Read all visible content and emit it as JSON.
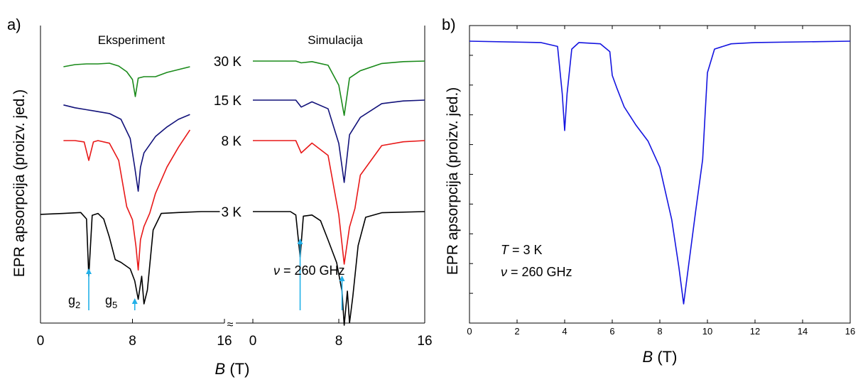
{
  "panel_a": {
    "label": "a)",
    "col_left_title": "Eksperiment",
    "col_right_title": "Simulacija",
    "ylabel": "EPR apsorpcija (proizv. jed.)",
    "xlabel_var": "B",
    "xlabel_unit": " (T)",
    "left_ticks": [
      "0",
      "8",
      "16"
    ],
    "right_ticks": [
      "0",
      "8",
      "16"
    ],
    "break_mark": "≈",
    "nu_symbol": "ν",
    "nu_text": " = 260 GHz",
    "g2": "g",
    "g2_sub": "2",
    "g5": "g",
    "g5_sub": "5"
  },
  "panel_b": {
    "label": "b)",
    "ylabel": "EPR apsorpcija (proizv. jed.)",
    "xlabel_var": "B",
    "xlabel_unit": " (T)",
    "ticks": [
      "0",
      "2",
      "4",
      "6",
      "8",
      "10",
      "12",
      "14",
      "16"
    ],
    "T_symbol": "T",
    "T_text": " = 3 K",
    "nu_symbol": "ν",
    "nu_text": " = 260 GHz"
  },
  "colors": {
    "30K": "#1a8a1a",
    "15K": "#12127a",
    "8K": "#e81818",
    "3K": "#000000",
    "panel_b_line": "#1414e0",
    "arrow": "#22b0e8"
  },
  "chart_data": [
    {
      "type": "line",
      "title": "Eksperiment",
      "xlabel": "B (T)",
      "ylabel": "EPR apsorpcija (proizv. jed.)",
      "xlim": [
        0,
        16
      ],
      "xticks": [
        0,
        8,
        16
      ],
      "grid": false,
      "series": [
        {
          "name": "30 K",
          "x": [
            2.0,
            3.0,
            4.0,
            5.0,
            6.0,
            6.8,
            7.5,
            8.0,
            8.25,
            8.5,
            9.0,
            10.0,
            11.0,
            12.0,
            13.0
          ],
          "y": [
            0.92,
            0.95,
            0.96,
            0.96,
            0.97,
            0.93,
            0.85,
            0.74,
            0.5,
            0.76,
            0.78,
            0.78,
            0.84,
            0.88,
            0.92
          ]
        },
        {
          "name": "15 K",
          "x": [
            2.0,
            3.0,
            4.0,
            5.0,
            6.0,
            7.0,
            7.8,
            8.2,
            8.5,
            8.7,
            9.0,
            10.0,
            11.0,
            12.0,
            13.0
          ],
          "y": [
            0.95,
            0.92,
            0.9,
            0.88,
            0.86,
            0.8,
            0.6,
            0.3,
            0.05,
            0.3,
            0.45,
            0.62,
            0.72,
            0.8,
            0.85
          ]
        },
        {
          "name": "8 K",
          "x": [
            2.0,
            3.0,
            3.8,
            4.2,
            4.6,
            5.0,
            6.0,
            6.8,
            7.5,
            8.0,
            8.3,
            8.5,
            8.7,
            9.0,
            9.5,
            10.0,
            11.0,
            12.0,
            13.0
          ],
          "y": [
            1.0,
            1.0,
            0.99,
            0.85,
            0.99,
            1.0,
            0.98,
            0.85,
            0.5,
            0.4,
            0.2,
            0.02,
            0.25,
            0.35,
            0.45,
            0.6,
            0.8,
            0.95,
            1.08
          ]
        },
        {
          "name": "3 K",
          "x": [
            0.0,
            2.0,
            3.5,
            4.0,
            4.2,
            4.5,
            5.0,
            5.5,
            6.0,
            6.5,
            7.0,
            7.8,
            8.2,
            8.5,
            8.8,
            9.0,
            9.3,
            9.8,
            10.5,
            12.0,
            14.0,
            15.6
          ],
          "y": [
            0.97,
            0.98,
            0.99,
            0.92,
            0.3,
            0.96,
            0.98,
            0.92,
            0.72,
            0.48,
            0.45,
            0.38,
            0.25,
            0.05,
            0.3,
            0.0,
            0.15,
            0.8,
            0.98,
            0.99,
            1.0,
            1.0
          ]
        }
      ]
    },
    {
      "type": "line",
      "title": "Simulacija",
      "xlabel": "B (T)",
      "ylabel": "EPR apsorpcija (proizv. jed.)",
      "xlim": [
        0,
        16
      ],
      "xticks": [
        0,
        8,
        16
      ],
      "grid": false,
      "series": [
        {
          "name": "30 K",
          "x": [
            0.0,
            4.0,
            4.5,
            5.5,
            7.0,
            8.0,
            8.5,
            9.0,
            10.0,
            12.0,
            14.0,
            16.0
          ],
          "y": [
            1.0,
            1.0,
            0.97,
            0.99,
            0.93,
            0.6,
            0.1,
            0.72,
            0.84,
            0.96,
            0.99,
            1.0
          ]
        },
        {
          "name": "15 K",
          "x": [
            0.0,
            4.0,
            4.5,
            5.5,
            7.0,
            8.0,
            8.5,
            9.0,
            10.0,
            12.0,
            14.0,
            16.0
          ],
          "y": [
            1.0,
            1.0,
            0.92,
            0.98,
            0.9,
            0.5,
            0.05,
            0.6,
            0.8,
            0.96,
            0.99,
            1.0
          ]
        },
        {
          "name": "8 K",
          "x": [
            0.0,
            4.0,
            4.5,
            5.5,
            7.0,
            8.0,
            8.5,
            9.0,
            9.5,
            10.0,
            12.0,
            14.0,
            16.0
          ],
          "y": [
            1.0,
            1.0,
            0.9,
            0.98,
            0.88,
            0.4,
            0.0,
            0.3,
            0.45,
            0.72,
            0.96,
            0.99,
            1.0
          ]
        },
        {
          "name": "3 K",
          "x": [
            0.0,
            3.5,
            4.0,
            4.4,
            4.7,
            5.5,
            6.3,
            7.0,
            7.8,
            8.3,
            8.5,
            8.8,
            9.0,
            9.3,
            9.8,
            10.5,
            12.0,
            16.0
          ],
          "y": [
            1.0,
            1.0,
            0.97,
            0.6,
            0.96,
            0.97,
            0.92,
            0.75,
            0.55,
            0.3,
            0.0,
            0.3,
            0.02,
            0.25,
            0.7,
            0.95,
            0.99,
            1.0
          ]
        }
      ]
    },
    {
      "type": "line",
      "xlabel": "B (T)",
      "ylabel": "EPR apsorpcija (proizv. jed.)",
      "xlim": [
        0,
        16
      ],
      "xticks": [
        0,
        2,
        4,
        6,
        8,
        10,
        12,
        14,
        16
      ],
      "grid": false,
      "series": [
        {
          "x": [
            0.0,
            3.0,
            3.7,
            3.9,
            4.0,
            4.1,
            4.3,
            4.6,
            5.5,
            5.9,
            6.0,
            6.2,
            6.5,
            7.0,
            7.5,
            8.0,
            8.5,
            8.8,
            9.0,
            9.2,
            9.5,
            9.8,
            9.9,
            10.0,
            10.3,
            11.0,
            12.0,
            16.0
          ],
          "y": [
            1.0,
            0.995,
            0.98,
            0.8,
            0.66,
            0.8,
            0.97,
            0.995,
            0.99,
            0.96,
            0.87,
            0.82,
            0.75,
            0.68,
            0.62,
            0.52,
            0.32,
            0.14,
            0.0,
            0.14,
            0.35,
            0.55,
            0.72,
            0.88,
            0.97,
            0.99,
            0.995,
            1.0
          ]
        }
      ]
    }
  ]
}
